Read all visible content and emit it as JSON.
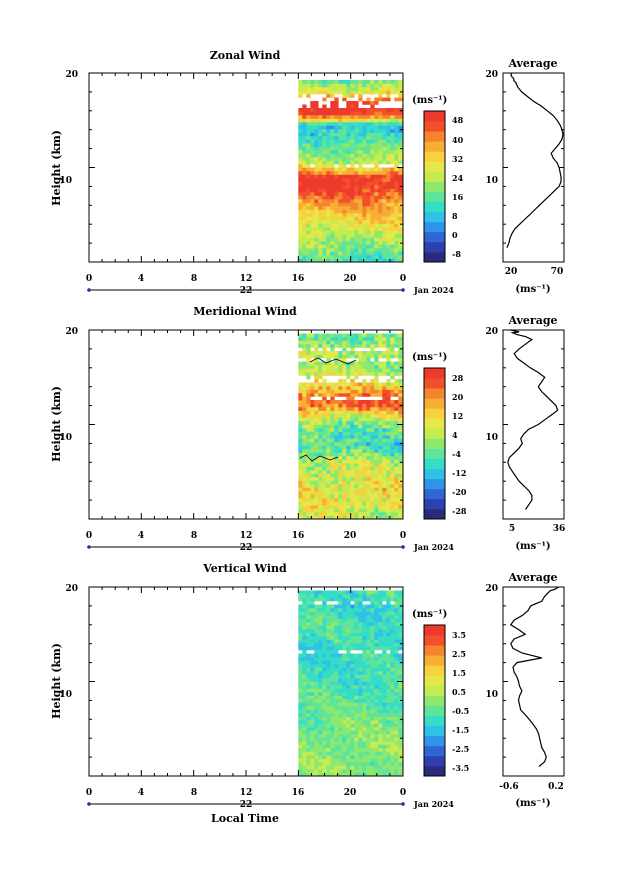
{
  "date_label": "Jan 2024",
  "xlabel_bottom": "Local Time",
  "colors": {
    "cbar_zonal": [
      "#2a2a7a",
      "#2e3fb0",
      "#2e66d6",
      "#2f94ea",
      "#2fc2e6",
      "#35dcc6",
      "#5fe49a",
      "#8fe86e",
      "#c2ec52",
      "#e6e84a",
      "#f6d23e",
      "#f8ae34",
      "#f6842e",
      "#f2502c",
      "#ee3a2c"
    ],
    "cbar_meridional": [
      "#2a2a7a",
      "#2e3fb0",
      "#2e66d6",
      "#2f94ea",
      "#2fc2e6",
      "#35dcc6",
      "#5fe49a",
      "#8fe86e",
      "#c2ec52",
      "#e6e84a",
      "#f6d23e",
      "#f8ae34",
      "#f6842e",
      "#f2502c",
      "#ee3a2c"
    ],
    "cbar_vertical": [
      "#2a2a7a",
      "#2e3fb0",
      "#2e66d6",
      "#2f94ea",
      "#2fc2e6",
      "#35dcc6",
      "#5fe49a",
      "#8fe86e",
      "#c2ec52",
      "#e6e84a",
      "#f6d23e",
      "#f8ae34",
      "#f6842e",
      "#f2502c",
      "#ee3a2c"
    ]
  },
  "chart_data": [
    {
      "type": "heatmap",
      "title": "Zonal Wind",
      "ylabel": "Height (km)",
      "xlabel": "22",
      "x_ticks": [
        "0",
        "4",
        "8",
        "12",
        "16",
        "20",
        "0"
      ],
      "y_ticks": [
        "10",
        "20"
      ],
      "ylim": [
        0,
        20
      ],
      "xlim_hours": [
        0,
        24
      ],
      "data_start_hour": 16,
      "colorbar": {
        "unit": "(ms⁻¹)",
        "ticks": [
          "48",
          "40",
          "32",
          "24",
          "16",
          "8",
          "0",
          "-8"
        ],
        "range": [
          -8,
          48
        ]
      },
      "profile_heights_km": [
        2,
        4,
        6,
        8,
        10,
        12,
        14,
        16,
        18,
        20
      ]
    },
    {
      "type": "line",
      "title": "Average",
      "xlabel": "(ms⁻¹)",
      "x_ticks": [
        "20",
        "70"
      ],
      "y_ticks": [
        "10",
        "20"
      ],
      "xlim": [
        13,
        75
      ],
      "ylim": [
        1,
        20
      ],
      "x": [
        17,
        19,
        20,
        22,
        25,
        30,
        35,
        40,
        45,
        50,
        55,
        60,
        65,
        70,
        72,
        72,
        71,
        70,
        68,
        64,
        62,
        66,
        70,
        73,
        74,
        73,
        71,
        68,
        64,
        58,
        52,
        44,
        38,
        32,
        28,
        26,
        24,
        24,
        22,
        21,
        22
      ],
      "y": [
        1.5,
        2.0,
        2.5,
        3.0,
        3.5,
        4.0,
        4.5,
        5.0,
        5.5,
        6.0,
        6.5,
        7.0,
        7.5,
        8.0,
        8.5,
        9.0,
        9.5,
        10.0,
        10.5,
        11.0,
        11.5,
        12.0,
        12.5,
        13.0,
        13.5,
        14.0,
        14.5,
        15.0,
        15.5,
        16.0,
        16.5,
        17.0,
        17.5,
        18.0,
        18.5,
        19.0,
        19.2,
        19.4,
        19.6,
        19.8,
        20.0
      ]
    },
    {
      "type": "heatmap",
      "title": "Meridional Wind",
      "ylabel": "Height (km)",
      "xlabel": "22",
      "x_ticks": [
        "0",
        "4",
        "8",
        "12",
        "16",
        "20",
        "0"
      ],
      "y_ticks": [
        "10",
        "20"
      ],
      "ylim": [
        0,
        20
      ],
      "xlim_hours": [
        0,
        24
      ],
      "data_start_hour": 16,
      "colorbar": {
        "unit": "(ms⁻¹)",
        "ticks": [
          "28",
          "20",
          "12",
          "4",
          "-4",
          "-12",
          "-20",
          "-28"
        ],
        "range": [
          -28,
          28
        ]
      },
      "profile_heights_km": [
        2,
        4,
        6,
        8,
        10,
        12,
        14,
        16,
        18,
        20
      ]
    },
    {
      "type": "line",
      "title": "Average",
      "xlabel": "(ms⁻¹)",
      "x_ticks": [
        "5",
        "36"
      ],
      "y_ticks": [
        "10",
        "20"
      ],
      "xlim": [
        0,
        38
      ],
      "ylim": [
        1,
        20
      ],
      "x": [
        14,
        16,
        18,
        18,
        16,
        13,
        10,
        8,
        6,
        4,
        3,
        4,
        7,
        10,
        12,
        11,
        13,
        16,
        22,
        26,
        30,
        34,
        33,
        30,
        27,
        24,
        22,
        24,
        26,
        22,
        17,
        13,
        9,
        7,
        10,
        14,
        18,
        14,
        9,
        6,
        10,
        7,
        5,
        4
      ],
      "y": [
        1.0,
        1.5,
        2.0,
        2.5,
        3.0,
        3.5,
        4.0,
        4.5,
        5.0,
        5.5,
        6.0,
        6.5,
        7.0,
        7.5,
        8.0,
        8.5,
        9.0,
        9.5,
        10.0,
        10.5,
        11.0,
        11.5,
        12.0,
        12.5,
        13.0,
        13.5,
        14.0,
        14.5,
        15.0,
        15.5,
        16.0,
        16.5,
        17.0,
        17.5,
        18.0,
        18.5,
        19.0,
        19.3,
        19.5,
        19.7,
        19.8,
        19.9,
        20.0,
        20.0
      ]
    },
    {
      "type": "heatmap",
      "title": "Vertical Wind",
      "ylabel": "Height (km)",
      "xlabel": "22",
      "x_ticks": [
        "0",
        "4",
        "8",
        "12",
        "16",
        "20",
        "0"
      ],
      "y_ticks": [
        "10",
        "20"
      ],
      "ylim": [
        0,
        20
      ],
      "xlim_hours": [
        0,
        24
      ],
      "data_start_hour": 16,
      "colorbar": {
        "unit": "(ms⁻¹)",
        "ticks": [
          "3.5",
          "2.5",
          "1.5",
          "0.5",
          "-0.5",
          "-1.5",
          "-2.5",
          "-3.5"
        ],
        "range": [
          -3.5,
          3.5
        ]
      },
      "profile_heights_km": [
        2,
        4,
        6,
        8,
        10,
        12,
        14,
        16,
        18,
        20
      ]
    },
    {
      "type": "line",
      "title": "Average",
      "xlabel": "(ms⁻¹)",
      "x_ticks": [
        "-0.6",
        "0.2"
      ],
      "y_ticks": [
        "10",
        "20"
      ],
      "xlim": [
        -0.8,
        0.3
      ],
      "ylim": [
        1,
        20
      ],
      "x": [
        -0.15,
        -0.05,
        -0.02,
        -0.05,
        -0.1,
        -0.12,
        -0.14,
        -0.16,
        -0.2,
        -0.26,
        -0.33,
        -0.4,
        -0.48,
        -0.5,
        -0.52,
        -0.5,
        -0.46,
        -0.5,
        -0.52,
        -0.55,
        -0.6,
        -0.62,
        -0.55,
        -0.1,
        -0.45,
        -0.62,
        -0.66,
        -0.6,
        -0.4,
        -0.52,
        -0.66,
        -0.6,
        -0.45,
        -0.35,
        -0.3,
        -0.1,
        -0.05,
        0.0,
        0.05,
        0.15,
        0.2
      ],
      "y": [
        1.0,
        1.5,
        2.0,
        2.5,
        3.0,
        3.5,
        4.0,
        4.5,
        5.0,
        5.5,
        6.0,
        6.5,
        7.0,
        7.5,
        8.0,
        8.5,
        9.0,
        9.5,
        10.0,
        10.5,
        11.0,
        11.5,
        12.0,
        12.5,
        13.0,
        13.5,
        14.0,
        14.5,
        15.0,
        15.5,
        16.0,
        16.5,
        17.0,
        17.5,
        18.0,
        18.5,
        19.0,
        19.3,
        19.6,
        19.8,
        20.0
      ]
    }
  ]
}
